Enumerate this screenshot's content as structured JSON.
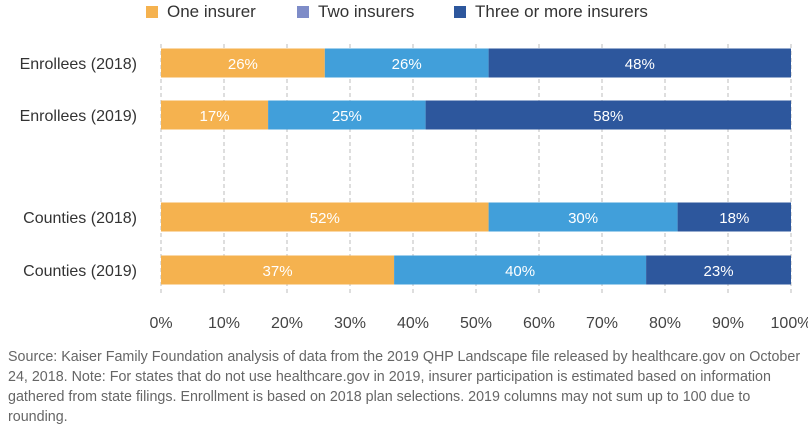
{
  "legend": {
    "items": [
      {
        "label": "One insurer",
        "color": "#F5B24F"
      },
      {
        "label": "Two insurers",
        "color": "#7E8CC8"
      },
      {
        "label": "Three or more insurers",
        "color": "#2D579D"
      }
    ]
  },
  "chart_data": {
    "type": "bar",
    "orientation": "horizontal",
    "stacked": true,
    "categories": [
      "Enrollees (2018)",
      "Enrollees (2019)",
      "Counties (2018)",
      "Counties (2019)"
    ],
    "series": [
      {
        "name": "One insurer",
        "values": [
          26,
          17,
          52,
          37
        ],
        "labels": [
          "26%",
          "17%",
          "52%",
          "37%"
        ],
        "color": "#F5B24F"
      },
      {
        "name": "Two insurers",
        "values": [
          26,
          25,
          30,
          40
        ],
        "labels": [
          "26%",
          "25%",
          "30%",
          "40%"
        ],
        "color": "#419FDA"
      },
      {
        "name": "Three or more insurers",
        "values": [
          48,
          58,
          18,
          23
        ],
        "labels": [
          "48%",
          "58%",
          "18%",
          "23%"
        ],
        "color": "#2D579D"
      }
    ],
    "xlim": [
      0,
      100
    ],
    "x_ticks": [
      "0%",
      "10%",
      "20%",
      "30%",
      "40%",
      "50%",
      "60%",
      "70%",
      "80%",
      "90%",
      "100%"
    ],
    "grid": "vertical-dashed",
    "legend_position": "top"
  },
  "footer": {
    "source_note": "Source: Kaiser Family Foundation analysis of data from the 2019 QHP Landscape file released by healthcare.gov on October 24, 2018. Note: For states that do not use healthcare.gov in 2019, insurer participation is estimated based on information gathered from state filings. Enrollment is based on 2018 plan selections. 2019 columns may not sum up to 100 due to rounding."
  }
}
